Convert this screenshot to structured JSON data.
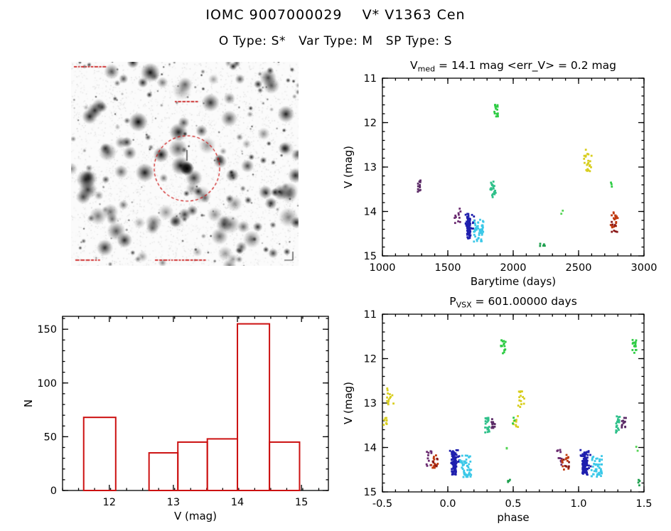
{
  "page": {
    "title": "IOMC 9007000029    V* V1363 Cen",
    "subtitle": "O Type: S*   Var Type: M   SP Type: S"
  },
  "finding_chart": {
    "circle_color": "#cc1111",
    "annotation_color": "#cc2222",
    "scale_color": "#333333"
  },
  "chart_data": [
    {
      "id": "lightcurve",
      "type": "scatter",
      "title": {
        "prefix": "V",
        "sub": "med",
        "rest": " = 14.1 mag  <err_V> = 0.2 mag"
      },
      "xlabel": "Barytime (days)",
      "ylabel": "V (mag)",
      "xlim": [
        1000,
        3000
      ],
      "ylim": [
        11,
        15
      ],
      "invert_y": true,
      "xticks": [
        1000,
        1500,
        2000,
        2500,
        3000
      ],
      "xtick_labels": [
        "1000",
        "1500",
        "2000",
        "2500",
        "3000"
      ],
      "yticks": [
        11,
        12,
        13,
        14,
        15
      ],
      "ytick_labels": [
        "11",
        "12",
        "13",
        "14",
        "15"
      ],
      "x_minor": 100,
      "y_minor": 0.2,
      "clusters": [
        {
          "x": [
            1270,
            1292
          ],
          "y": [
            13.3,
            13.58
          ],
          "n": 14,
          "color": "#5b2a66"
        },
        {
          "x": [
            1550,
            1612
          ],
          "y": [
            13.93,
            14.3
          ],
          "n": 11,
          "color": "#6a2a70"
        },
        {
          "x": [
            1648,
            1672
          ],
          "y": [
            14.1,
            14.62
          ],
          "n": 75,
          "color": "#1f1fae"
        },
        {
          "x": [
            1635,
            1705
          ],
          "y": [
            14.05,
            14.55
          ],
          "n": 20,
          "color": "#1f1fae"
        },
        {
          "x": [
            1690,
            1772
          ],
          "y": [
            14.18,
            14.68
          ],
          "n": 50,
          "color": "#3bc8e8"
        },
        {
          "x": [
            1824,
            1868
          ],
          "y": [
            13.3,
            13.68
          ],
          "n": 22,
          "color": "#2fc08a"
        },
        {
          "x": [
            1856,
            1884
          ],
          "y": [
            11.58,
            11.88
          ],
          "n": 16,
          "color": "#2ecc44"
        },
        {
          "x": [
            2205,
            2242
          ],
          "y": [
            14.72,
            14.86
          ],
          "n": 5,
          "color": "#1fa04f"
        },
        {
          "x": [
            2365,
            2382
          ],
          "y": [
            13.97,
            14.08
          ],
          "n": 2,
          "color": "#55d555"
        },
        {
          "x": [
            2542,
            2602
          ],
          "y": [
            12.58,
            13.1
          ],
          "n": 22,
          "color": "#d8ce1e"
        },
        {
          "x": [
            2745,
            2762
          ],
          "y": [
            13.33,
            13.46
          ],
          "n": 3,
          "color": "#2ecc44"
        },
        {
          "x": [
            2738,
            2800
          ],
          "y": [
            14.0,
            14.38
          ],
          "n": 20,
          "color": "#c03a10"
        },
        {
          "x": [
            2748,
            2795
          ],
          "y": [
            14.22,
            14.46
          ],
          "n": 8,
          "color": "#8a1a1a"
        }
      ]
    },
    {
      "id": "histogram",
      "type": "bar",
      "xlabel": "V (mag)",
      "ylabel": "N",
      "xlim": [
        11.27,
        15.42
      ],
      "ylim": [
        0,
        162
      ],
      "invert_y": false,
      "xticks": [
        12,
        13,
        14,
        15
      ],
      "xtick_labels": [
        "12",
        "13",
        "14",
        "15"
      ],
      "yticks": [
        0,
        50,
        100,
        150
      ],
      "ytick_labels": [
        "0",
        "50",
        "100",
        "150"
      ],
      "x_minor": 0.25,
      "y_minor": 10,
      "bar_color": "#cc1111",
      "bars": [
        {
          "x0": 11.6,
          "x1": 12.1,
          "n": 68
        },
        {
          "x0": 12.62,
          "x1": 13.07,
          "n": 35
        },
        {
          "x0": 13.07,
          "x1": 13.53,
          "n": 45
        },
        {
          "x0": 13.53,
          "x1": 14.0,
          "n": 48
        },
        {
          "x0": 14.0,
          "x1": 14.5,
          "n": 155
        },
        {
          "x0": 14.5,
          "x1": 14.97,
          "n": 45
        }
      ]
    },
    {
      "id": "phase",
      "type": "scatter",
      "title": {
        "prefix": "P",
        "sub": "VSX",
        "rest": " = 601.00000 days"
      },
      "xlabel": "phase",
      "ylabel": "V (mag)",
      "xlim": [
        -0.5,
        1.5
      ],
      "ylim": [
        11,
        15
      ],
      "invert_y": true,
      "xticks": [
        -0.5,
        0.0,
        0.5,
        1.0,
        1.5
      ],
      "xtick_labels": [
        "-0.5",
        "0.0",
        "0.5",
        "1.0",
        "1.5"
      ],
      "yticks": [
        11,
        12,
        13,
        14,
        15
      ],
      "ytick_labels": [
        "11",
        "12",
        "13",
        "14",
        "15"
      ],
      "x_minor": 0.1,
      "y_minor": 0.2,
      "clusters": [
        {
          "x": [
            -0.5,
            -0.458
          ],
          "y": [
            13.28,
            13.6
          ],
          "n": 8,
          "color": "#d8ce1e"
        },
        {
          "x": [
            -0.47,
            -0.415
          ],
          "y": [
            12.65,
            13.1
          ],
          "n": 14,
          "color": "#d8ce1e"
        },
        {
          "x": [
            0.5,
            0.542
          ],
          "y": [
            13.28,
            13.6
          ],
          "n": 8,
          "color": "#d8ce1e"
        },
        {
          "x": [
            0.53,
            0.585
          ],
          "y": [
            12.65,
            13.1
          ],
          "n": 14,
          "color": "#d8ce1e"
        },
        {
          "x": [
            0.33,
            0.362
          ],
          "y": [
            13.32,
            13.58
          ],
          "n": 12,
          "color": "#5b2a66"
        },
        {
          "x": [
            1.33,
            1.362
          ],
          "y": [
            13.32,
            13.58
          ],
          "n": 12,
          "color": "#5b2a66"
        },
        {
          "x": [
            0.285,
            0.318
          ],
          "y": [
            13.3,
            13.68
          ],
          "n": 20,
          "color": "#2fc08a"
        },
        {
          "x": [
            1.285,
            1.318
          ],
          "y": [
            13.3,
            13.68
          ],
          "n": 20,
          "color": "#2fc08a"
        },
        {
          "x": [
            0.405,
            0.442
          ],
          "y": [
            11.58,
            11.88
          ],
          "n": 16,
          "color": "#2ecc44"
        },
        {
          "x": [
            1.405,
            1.442
          ],
          "y": [
            11.58,
            11.88
          ],
          "n": 16,
          "color": "#2ecc44"
        },
        {
          "x": [
            0.44,
            0.458
          ],
          "y": [
            13.97,
            14.08
          ],
          "n": 2,
          "color": "#55d555"
        },
        {
          "x": [
            1.44,
            1.458
          ],
          "y": [
            13.97,
            14.08
          ],
          "n": 2,
          "color": "#55d555"
        },
        {
          "x": [
            0.452,
            0.478
          ],
          "y": [
            14.72,
            14.86
          ],
          "n": 4,
          "color": "#1fa04f"
        },
        {
          "x": [
            1.452,
            1.478
          ],
          "y": [
            14.72,
            14.86
          ],
          "n": 4,
          "color": "#1fa04f"
        },
        {
          "x": [
            0.497,
            0.515
          ],
          "y": [
            13.33,
            13.46
          ],
          "n": 3,
          "color": "#2ecc44"
        },
        {
          "x": [
            -0.165,
            -0.125
          ],
          "y": [
            14.03,
            14.42
          ],
          "n": 11,
          "color": "#6a2a70"
        },
        {
          "x": [
            0.835,
            0.875
          ],
          "y": [
            14.03,
            14.42
          ],
          "n": 11,
          "color": "#6a2a70"
        },
        {
          "x": [
            -0.128,
            -0.075
          ],
          "y": [
            14.15,
            14.5
          ],
          "n": 14,
          "color": "#c03a10"
        },
        {
          "x": [
            0.872,
            0.925
          ],
          "y": [
            14.15,
            14.5
          ],
          "n": 14,
          "color": "#c03a10"
        },
        {
          "x": [
            -0.125,
            -0.072
          ],
          "y": [
            14.25,
            14.52
          ],
          "n": 6,
          "color": "#8a1a1a"
        },
        {
          "x": [
            0.875,
            0.928
          ],
          "y": [
            14.25,
            14.52
          ],
          "n": 6,
          "color": "#8a1a1a"
        },
        {
          "x": [
            0.03,
            0.068
          ],
          "y": [
            14.1,
            14.62
          ],
          "n": 75,
          "color": "#1f1fae"
        },
        {
          "x": [
            0.015,
            0.095
          ],
          "y": [
            14.05,
            14.55
          ],
          "n": 18,
          "color": "#1f1fae"
        },
        {
          "x": [
            1.03,
            1.068
          ],
          "y": [
            14.1,
            14.62
          ],
          "n": 75,
          "color": "#1f1fae"
        },
        {
          "x": [
            1.015,
            1.095
          ],
          "y": [
            14.05,
            14.55
          ],
          "n": 18,
          "color": "#1f1fae"
        },
        {
          "x": [
            0.095,
            0.18
          ],
          "y": [
            14.18,
            14.68
          ],
          "n": 50,
          "color": "#3bc8e8"
        },
        {
          "x": [
            1.095,
            1.18
          ],
          "y": [
            14.18,
            14.68
          ],
          "n": 50,
          "color": "#3bc8e8"
        }
      ]
    }
  ]
}
